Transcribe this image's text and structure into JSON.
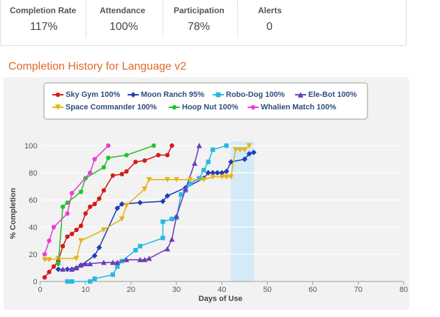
{
  "stats": [
    {
      "label": "Completion Rate",
      "value": "117%"
    },
    {
      "label": "Attendance",
      "value": "100%"
    },
    {
      "label": "Participation",
      "value": "78%"
    },
    {
      "label": "Alerts",
      "value": "0"
    }
  ],
  "section_title": "Completion History for Language v2",
  "chart_data": {
    "type": "line",
    "title": "",
    "xlabel": "Days of Use",
    "ylabel": "% Completion",
    "xlim": [
      0,
      80
    ],
    "ylim": [
      0,
      100
    ],
    "xticks": [
      0,
      10,
      20,
      30,
      40,
      50,
      60,
      70,
      80
    ],
    "yticks": [
      0,
      20,
      40,
      60,
      80,
      100
    ],
    "grid": true,
    "legend_position": "top",
    "highlight_band": {
      "x": [
        42,
        47
      ]
    },
    "series": [
      {
        "name": "Sky Gym",
        "legend": "Sky Gym 100%",
        "color": "#d61a1a",
        "marker": "circle",
        "points": [
          [
            1,
            3
          ],
          [
            2,
            7
          ],
          [
            3,
            11
          ],
          [
            4,
            15
          ],
          [
            5,
            26
          ],
          [
            6,
            33
          ],
          [
            7,
            35
          ],
          [
            8,
            38
          ],
          [
            9,
            41
          ],
          [
            10,
            50
          ],
          [
            11,
            55
          ],
          [
            12,
            57
          ],
          [
            13,
            61
          ],
          [
            14,
            67
          ],
          [
            16,
            78
          ],
          [
            18,
            79
          ],
          [
            19,
            81
          ],
          [
            21,
            88
          ],
          [
            23,
            89
          ],
          [
            26,
            93
          ],
          [
            28,
            93
          ],
          [
            29,
            100
          ]
        ]
      },
      {
        "name": "Moon Ranch",
        "legend": "Moon Ranch 95%",
        "color": "#1f3eb5",
        "marker": "diamond",
        "points": [
          [
            4,
            9
          ],
          [
            6,
            9
          ],
          [
            7,
            9
          ],
          [
            8,
            10
          ],
          [
            9,
            12
          ],
          [
            12,
            19
          ],
          [
            13,
            25
          ],
          [
            17,
            54
          ],
          [
            18,
            57
          ],
          [
            22,
            58
          ],
          [
            27,
            59
          ],
          [
            28,
            63
          ],
          [
            32,
            69
          ],
          [
            36,
            76
          ],
          [
            37,
            80
          ],
          [
            38,
            80
          ],
          [
            39,
            80
          ],
          [
            40,
            80
          ],
          [
            41,
            81
          ],
          [
            42,
            88
          ],
          [
            45,
            90
          ],
          [
            46,
            94
          ],
          [
            47,
            95
          ]
        ]
      },
      {
        "name": "Robo-Dog",
        "legend": "Robo-Dog 100%",
        "color": "#29b8e3",
        "marker": "square",
        "points": [
          [
            6,
            0
          ],
          [
            7,
            0
          ],
          [
            11,
            0
          ],
          [
            12,
            2
          ],
          [
            16,
            5
          ],
          [
            17,
            11
          ],
          [
            18,
            15
          ],
          [
            21,
            23
          ],
          [
            22,
            26
          ],
          [
            27,
            32
          ],
          [
            27,
            44
          ],
          [
            29,
            46
          ],
          [
            30,
            47
          ],
          [
            31,
            64
          ],
          [
            32,
            67
          ],
          [
            33,
            72
          ],
          [
            35,
            76
          ],
          [
            36,
            82
          ],
          [
            37,
            88
          ],
          [
            38,
            97
          ],
          [
            41,
            100
          ]
        ]
      },
      {
        "name": "Ele-Bot",
        "legend": "Ele-Bot 100%",
        "color": "#6b3fb8",
        "marker": "triangle",
        "points": [
          [
            5,
            9
          ],
          [
            7,
            9
          ],
          [
            8,
            10
          ],
          [
            9,
            12
          ],
          [
            10,
            13
          ],
          [
            11,
            13
          ],
          [
            14,
            14
          ],
          [
            16,
            14
          ],
          [
            17,
            14
          ],
          [
            19,
            16
          ],
          [
            22,
            16
          ],
          [
            23,
            16
          ],
          [
            24,
            17
          ],
          [
            28,
            24
          ],
          [
            29,
            31
          ],
          [
            30,
            48
          ],
          [
            32,
            68
          ],
          [
            34,
            87
          ],
          [
            35,
            100
          ]
        ]
      },
      {
        "name": "Space Commander",
        "legend": "Space Commander 100%",
        "color": "#e6b419",
        "marker": "downtriangle",
        "points": [
          [
            1,
            16
          ],
          [
            2,
            16
          ],
          [
            4,
            17
          ],
          [
            8,
            17
          ],
          [
            9,
            30
          ],
          [
            14,
            38
          ],
          [
            18,
            46
          ],
          [
            19,
            56
          ],
          [
            23,
            68
          ],
          [
            24,
            75
          ],
          [
            28,
            75
          ],
          [
            30,
            75
          ],
          [
            33,
            75
          ],
          [
            36,
            75
          ],
          [
            38,
            77
          ],
          [
            40,
            77
          ],
          [
            41,
            77
          ],
          [
            42,
            77
          ],
          [
            43,
            97
          ],
          [
            44,
            97
          ],
          [
            45,
            97
          ],
          [
            46,
            100
          ]
        ]
      },
      {
        "name": "Hoop Nut",
        "legend": "Hoop Nut 100%",
        "color": "#25c12e",
        "marker": "circle",
        "points": [
          [
            4,
            13
          ],
          [
            5,
            55
          ],
          [
            6,
            58
          ],
          [
            9,
            66
          ],
          [
            10,
            76
          ],
          [
            14,
            84
          ],
          [
            15,
            91
          ],
          [
            19,
            93
          ],
          [
            25,
            100
          ]
        ]
      },
      {
        "name": "Whalien Match",
        "legend": "Whalien Match 100%",
        "color": "#e93ed6",
        "marker": "circle",
        "points": [
          [
            1,
            20
          ],
          [
            2,
            30
          ],
          [
            3,
            40
          ],
          [
            6,
            50
          ],
          [
            7,
            65
          ],
          [
            11,
            80
          ],
          [
            12,
            90
          ],
          [
            15,
            100
          ]
        ]
      }
    ]
  }
}
